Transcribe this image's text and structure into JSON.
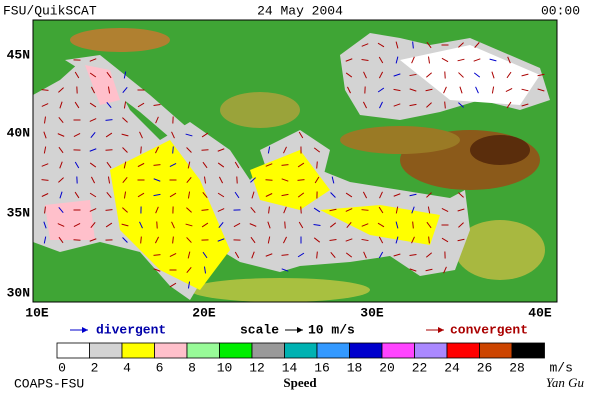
{
  "header": {
    "left": "FSU/QuikSCAT",
    "center": "24 May 2004",
    "right": "00:00"
  },
  "map": {
    "lat_labels": [
      "45N",
      "40N",
      "35N",
      "30N"
    ],
    "lon_labels": [
      "10E",
      "20E",
      "30E",
      "40E"
    ]
  },
  "legend": {
    "divergent": "divergent",
    "scale": "scale",
    "scale_value": "10 m/s",
    "convergent": "convergent"
  },
  "colorbar": {
    "labels": [
      "0",
      "2",
      "4",
      "6",
      "8",
      "10",
      "12",
      "14",
      "16",
      "18",
      "20",
      "22",
      "24",
      "26",
      "28"
    ],
    "colors": [
      "#ffffff",
      "#d3d3d3",
      "#ffff00",
      "#ffc0cb",
      "#98fb98",
      "#00ee00",
      "#999999",
      "#00b2b2",
      "#3399ff",
      "#0000cc",
      "#ff44ff",
      "#aa88ff",
      "#ff0000",
      "#cc4400",
      "#000000"
    ],
    "unit": "m/s",
    "title": "Speed"
  },
  "footer": {
    "left": "COAPS-FSU",
    "right": "Yan Gu"
  }
}
